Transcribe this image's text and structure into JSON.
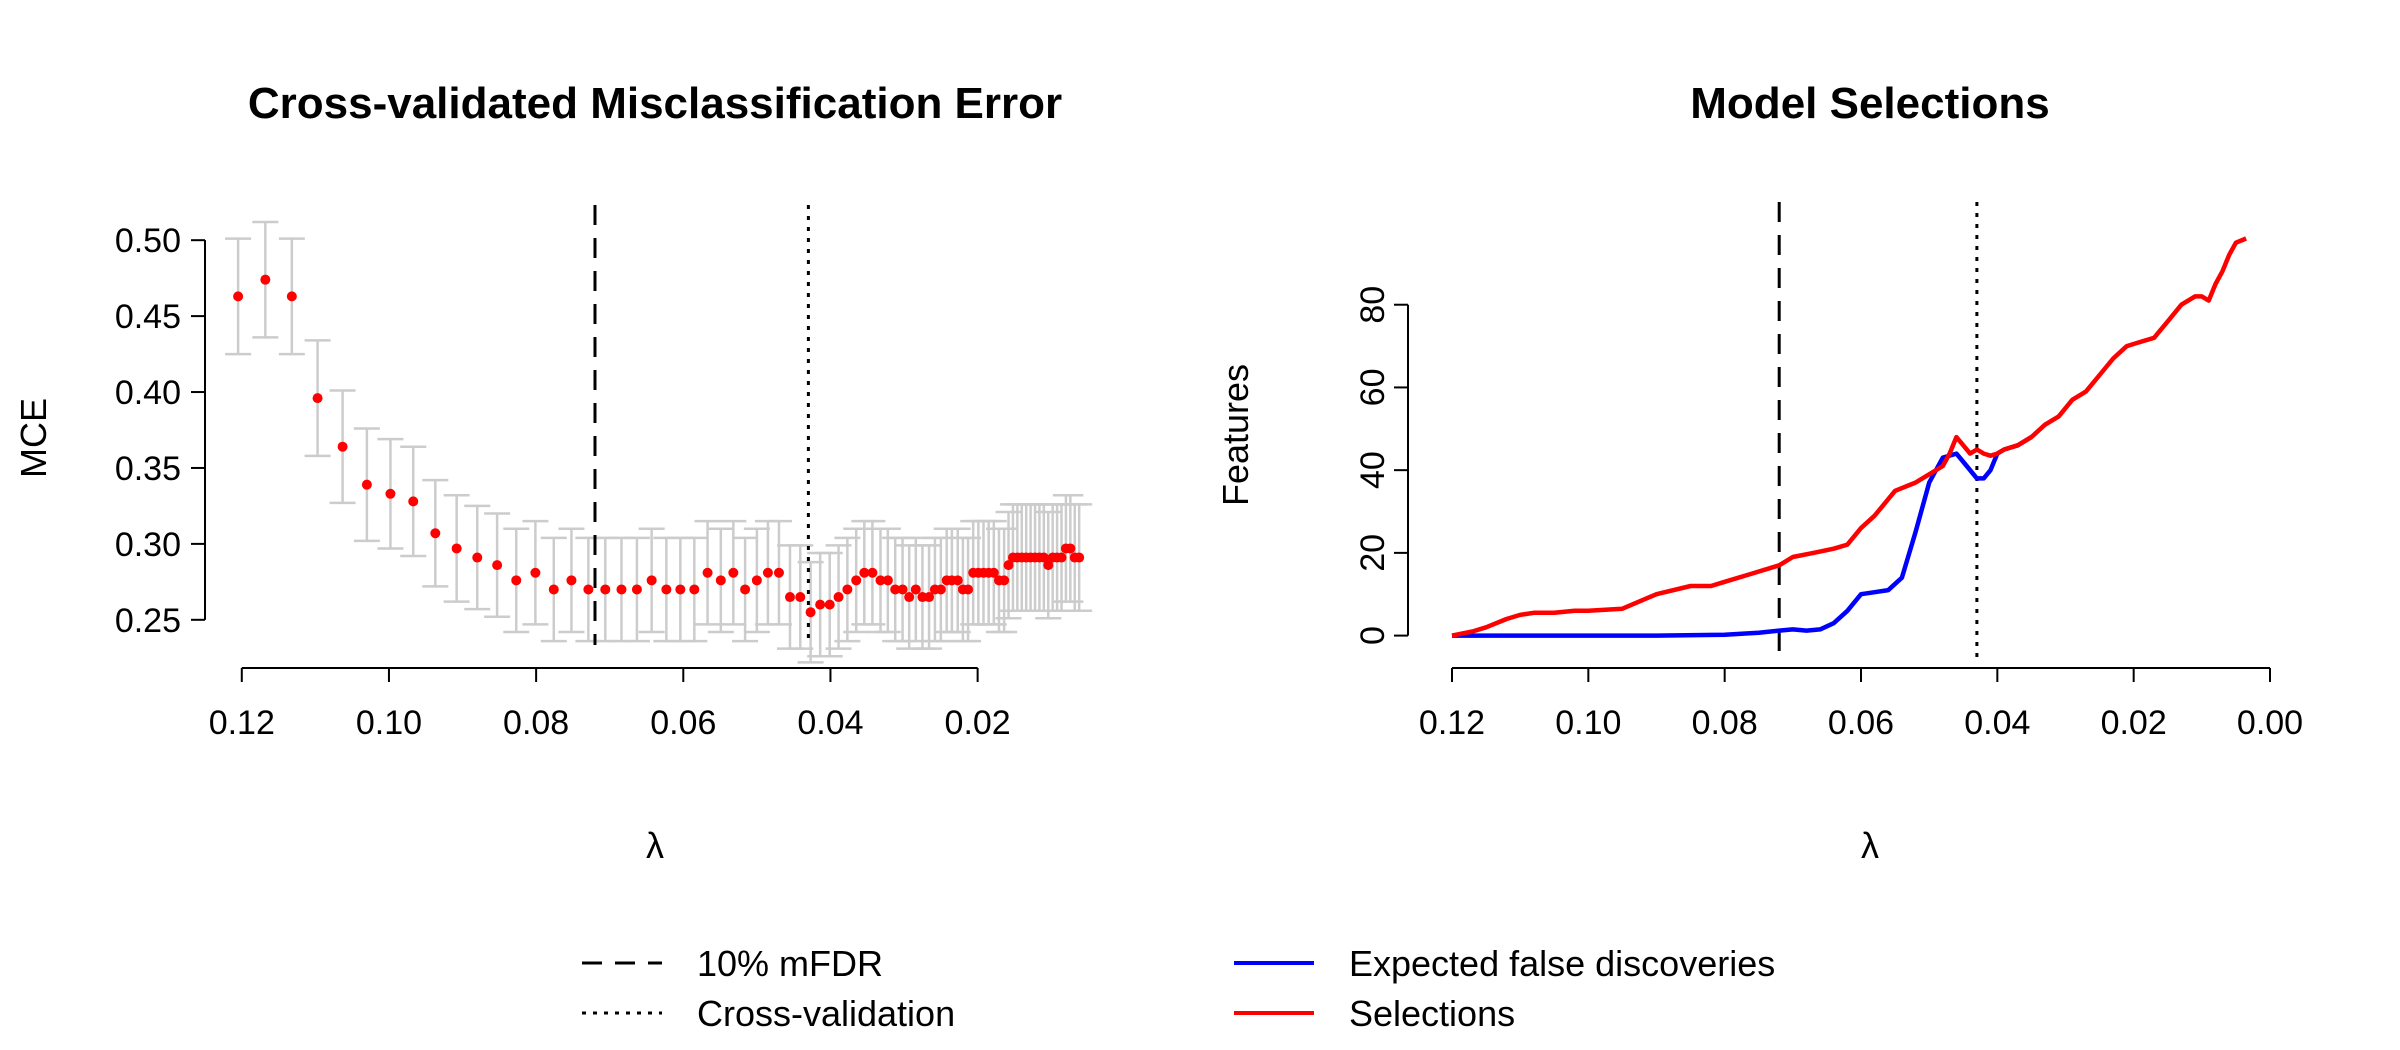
{
  "chart_data": [
    {
      "type": "scatter",
      "title": "Cross-validated Misclassification Error",
      "xlabel": "λ",
      "ylabel": "MCE",
      "x_reversed": true,
      "xlim": [
        0.125,
        0.005
      ],
      "ylim": [
        0.24,
        0.51
      ],
      "xticks": [
        0.12,
        0.1,
        0.08,
        0.06,
        0.04,
        0.02
      ],
      "xtick_labels": [
        "0.12",
        "0.10",
        "0.08",
        "0.06",
        "0.04",
        "0.02"
      ],
      "yticks": [
        0.25,
        0.3,
        0.35,
        0.4,
        0.45,
        0.5
      ],
      "ytick_labels": [
        "0.25",
        "0.30",
        "0.35",
        "0.40",
        "0.45",
        "0.50"
      ],
      "colors": {
        "point": "#ff0000",
        "errorbar": "#cccccc",
        "vline": "#000000"
      },
      "vlines": [
        {
          "x": 0.072,
          "style": "dashed"
        },
        {
          "x": 0.043,
          "style": "dotted"
        }
      ],
      "series": [
        {
          "points": [
            [
              0.1205,
              0.463,
              0.038
            ],
            [
              0.1168,
              0.474,
              0.038
            ],
            [
              0.1132,
              0.463,
              0.038
            ],
            [
              0.1097,
              0.396,
              0.038
            ],
            [
              0.1063,
              0.364,
              0.037
            ],
            [
              0.103,
              0.339,
              0.037
            ],
            [
              0.0998,
              0.333,
              0.036
            ],
            [
              0.0967,
              0.328,
              0.036
            ],
            [
              0.0937,
              0.307,
              0.035
            ],
            [
              0.0908,
              0.297,
              0.035
            ],
            [
              0.088,
              0.291,
              0.034
            ],
            [
              0.0853,
              0.286,
              0.034
            ],
            [
              0.0827,
              0.276,
              0.034
            ],
            [
              0.0801,
              0.281,
              0.034
            ],
            [
              0.0776,
              0.27,
              0.034
            ],
            [
              0.0752,
              0.276,
              0.034
            ],
            [
              0.0729,
              0.27,
              0.034
            ],
            [
              0.0706,
              0.27,
              0.034
            ],
            [
              0.0684,
              0.27,
              0.034
            ],
            [
              0.0663,
              0.27,
              0.034
            ],
            [
              0.0643,
              0.276,
              0.034
            ],
            [
              0.0623,
              0.27,
              0.034
            ],
            [
              0.0604,
              0.27,
              0.034
            ],
            [
              0.0585,
              0.27,
              0.034
            ],
            [
              0.0567,
              0.281,
              0.034
            ],
            [
              0.0549,
              0.276,
              0.034
            ],
            [
              0.0532,
              0.281,
              0.034
            ],
            [
              0.0516,
              0.27,
              0.034
            ],
            [
              0.05,
              0.276,
              0.034
            ],
            [
              0.0485,
              0.281,
              0.034
            ],
            [
              0.047,
              0.281,
              0.034
            ],
            [
              0.0455,
              0.265,
              0.034
            ],
            [
              0.0441,
              0.265,
              0.034
            ],
            [
              0.0427,
              0.255,
              0.033
            ],
            [
              0.0414,
              0.26,
              0.034
            ],
            [
              0.0401,
              0.26,
              0.034
            ],
            [
              0.0389,
              0.265,
              0.034
            ],
            [
              0.0377,
              0.27,
              0.034
            ],
            [
              0.0365,
              0.276,
              0.034
            ],
            [
              0.0354,
              0.281,
              0.034
            ],
            [
              0.0343,
              0.281,
              0.034
            ],
            [
              0.0332,
              0.276,
              0.034
            ],
            [
              0.0322,
              0.276,
              0.034
            ],
            [
              0.0312,
              0.27,
              0.034
            ],
            [
              0.0302,
              0.27,
              0.034
            ],
            [
              0.0293,
              0.265,
              0.034
            ],
            [
              0.0284,
              0.27,
              0.034
            ],
            [
              0.0275,
              0.265,
              0.034
            ],
            [
              0.0266,
              0.265,
              0.034
            ],
            [
              0.0258,
              0.27,
              0.034
            ],
            [
              0.025,
              0.27,
              0.034
            ],
            [
              0.0242,
              0.276,
              0.034
            ],
            [
              0.0235,
              0.276,
              0.034
            ],
            [
              0.0227,
              0.276,
              0.034
            ],
            [
              0.022,
              0.27,
              0.034
            ],
            [
              0.0213,
              0.27,
              0.034
            ],
            [
              0.0206,
              0.281,
              0.034
            ],
            [
              0.0199,
              0.281,
              0.034
            ],
            [
              0.0192,
              0.281,
              0.034
            ],
            [
              0.0185,
              0.281,
              0.034
            ],
            [
              0.0178,
              0.281,
              0.034
            ],
            [
              0.0171,
              0.276,
              0.034
            ],
            [
              0.0164,
              0.276,
              0.034
            ],
            [
              0.0158,
              0.286,
              0.035
            ],
            [
              0.0152,
              0.291,
              0.035
            ],
            [
              0.0146,
              0.291,
              0.035
            ],
            [
              0.014,
              0.291,
              0.035
            ],
            [
              0.0134,
              0.291,
              0.035
            ],
            [
              0.0128,
              0.291,
              0.035
            ],
            [
              0.0122,
              0.291,
              0.035
            ],
            [
              0.0116,
              0.291,
              0.035
            ],
            [
              0.011,
              0.291,
              0.035
            ],
            [
              0.0104,
              0.286,
              0.035
            ],
            [
              0.0098,
              0.291,
              0.035
            ],
            [
              0.0092,
              0.291,
              0.035
            ],
            [
              0.0086,
              0.291,
              0.035
            ],
            [
              0.008,
              0.297,
              0.035
            ],
            [
              0.0074,
              0.297,
              0.035
            ],
            [
              0.0068,
              0.291,
              0.035
            ],
            [
              0.0062,
              0.291,
              0.035
            ]
          ]
        }
      ]
    },
    {
      "type": "line",
      "title": "Model Selections",
      "xlabel": "λ",
      "ylabel": "Features",
      "x_reversed": true,
      "xlim": [
        0.12,
        0.0
      ],
      "ylim": [
        -3,
        100
      ],
      "xticks": [
        0.12,
        0.1,
        0.08,
        0.06,
        0.04,
        0.02,
        0.0
      ],
      "xtick_labels": [
        "0.12",
        "0.10",
        "0.08",
        "0.06",
        "0.04",
        "0.02",
        "0.00"
      ],
      "yticks": [
        0,
        20,
        40,
        60,
        80
      ],
      "ytick_labels": [
        "0",
        "20",
        "40",
        "60",
        "80"
      ],
      "vlines": [
        {
          "x": 0.072,
          "style": "dashed"
        },
        {
          "x": 0.043,
          "style": "dotted"
        }
      ],
      "series": [
        {
          "name": "Expected false discoveries",
          "color": "#0000ff",
          "points": [
            [
              0.12,
              0
            ],
            [
              0.11,
              0
            ],
            [
              0.1,
              0
            ],
            [
              0.09,
              0
            ],
            [
              0.08,
              0.2
            ],
            [
              0.075,
              0.7
            ],
            [
              0.072,
              1.2
            ],
            [
              0.07,
              1.5
            ],
            [
              0.068,
              1.2
            ],
            [
              0.066,
              1.5
            ],
            [
              0.064,
              3
            ],
            [
              0.062,
              6
            ],
            [
              0.06,
              10
            ],
            [
              0.058,
              10.5
            ],
            [
              0.056,
              11
            ],
            [
              0.054,
              14
            ],
            [
              0.052,
              25
            ],
            [
              0.05,
              37
            ],
            [
              0.048,
              43
            ],
            [
              0.046,
              44
            ],
            [
              0.0445,
              41
            ],
            [
              0.043,
              38
            ],
            [
              0.042,
              38
            ],
            [
              0.041,
              40
            ],
            [
              0.04,
              44
            ],
            [
              0.039,
              45
            ],
            [
              0.038,
              45.5
            ],
            [
              0.037,
              46
            ],
            [
              0.035,
              48
            ]
          ]
        },
        {
          "name": "Selections",
          "color": "#ff0000",
          "points": [
            [
              0.12,
              0
            ],
            [
              0.117,
              1
            ],
            [
              0.115,
              2
            ],
            [
              0.112,
              4
            ],
            [
              0.11,
              5
            ],
            [
              0.108,
              5.5
            ],
            [
              0.105,
              5.5
            ],
            [
              0.102,
              6
            ],
            [
              0.1,
              6
            ],
            [
              0.095,
              6.5
            ],
            [
              0.09,
              10
            ],
            [
              0.085,
              12
            ],
            [
              0.082,
              12
            ],
            [
              0.08,
              13
            ],
            [
              0.076,
              15
            ],
            [
              0.072,
              17
            ],
            [
              0.07,
              19
            ],
            [
              0.067,
              20
            ],
            [
              0.064,
              21
            ],
            [
              0.062,
              22
            ],
            [
              0.06,
              26
            ],
            [
              0.058,
              29
            ],
            [
              0.055,
              35
            ],
            [
              0.052,
              37
            ],
            [
              0.05,
              39
            ],
            [
              0.048,
              41
            ],
            [
              0.047,
              44
            ],
            [
              0.046,
              48
            ],
            [
              0.045,
              46
            ],
            [
              0.044,
              44
            ],
            [
              0.043,
              45
            ],
            [
              0.042,
              44
            ],
            [
              0.041,
              43.5
            ],
            [
              0.04,
              44
            ],
            [
              0.039,
              45
            ],
            [
              0.037,
              46
            ],
            [
              0.035,
              48
            ],
            [
              0.033,
              51
            ],
            [
              0.031,
              53
            ],
            [
              0.029,
              57
            ],
            [
              0.027,
              59
            ],
            [
              0.025,
              63
            ],
            [
              0.023,
              67
            ],
            [
              0.021,
              70
            ],
            [
              0.019,
              71
            ],
            [
              0.017,
              72
            ],
            [
              0.015,
              76
            ],
            [
              0.013,
              80
            ],
            [
              0.011,
              82
            ],
            [
              0.01,
              82
            ],
            [
              0.009,
              81
            ],
            [
              0.008,
              85
            ],
            [
              0.007,
              88
            ],
            [
              0.006,
              92
            ],
            [
              0.005,
              95
            ],
            [
              0.0035,
              96
            ]
          ]
        }
      ]
    }
  ],
  "legend_left": [
    {
      "label": "10% mFDR",
      "style": "dashed"
    },
    {
      "label": "Cross-validation",
      "style": "dotted"
    }
  ],
  "legend_right": [
    {
      "label": "Expected false discoveries",
      "color": "#0000ff"
    },
    {
      "label": "Selections",
      "color": "#ff0000"
    }
  ]
}
